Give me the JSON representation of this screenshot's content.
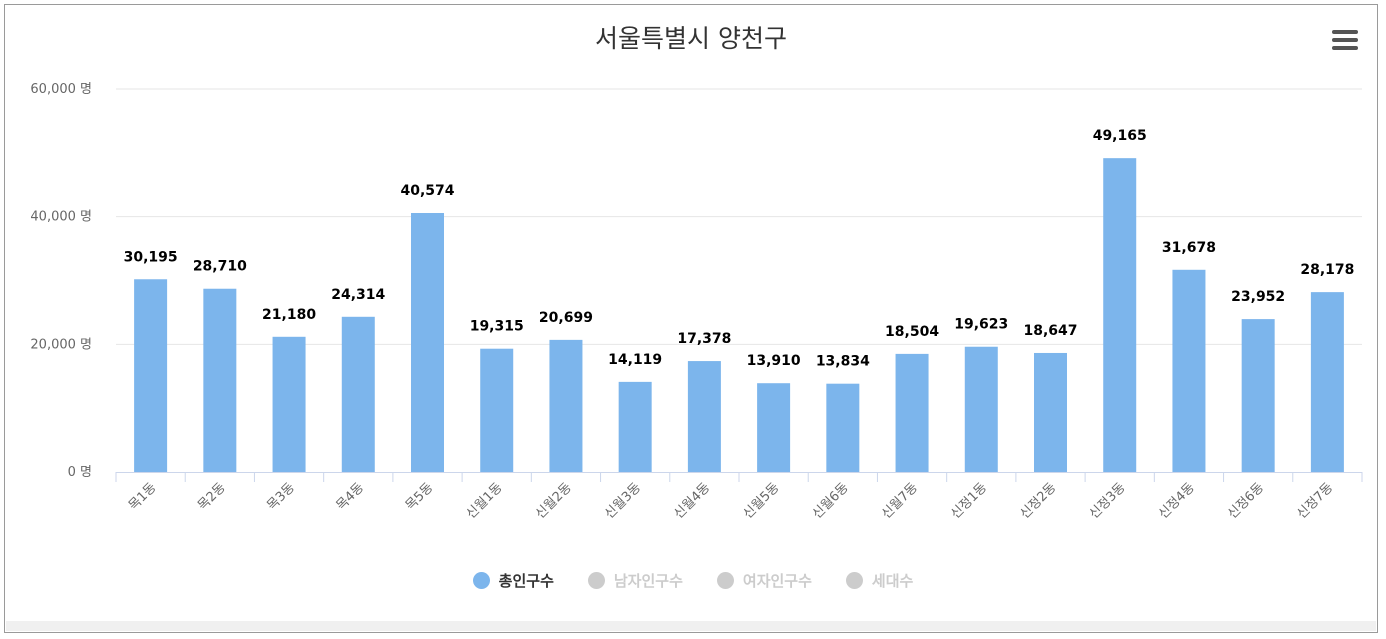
{
  "chart_data": {
    "type": "bar",
    "title": "서울특별시 양천구",
    "categories": [
      "목1동",
      "목2동",
      "목3동",
      "목4동",
      "목5동",
      "신월1동",
      "신월2동",
      "신월3동",
      "신월4동",
      "신월5동",
      "신월6동",
      "신월7동",
      "신정1동",
      "신정2동",
      "신정3동",
      "신정4동",
      "신정6동",
      "신정7동"
    ],
    "series": [
      {
        "name": "총인구수",
        "values": [
          30195,
          28710,
          21180,
          24314,
          40574,
          19315,
          20699,
          14119,
          17378,
          13910,
          13834,
          18504,
          19623,
          18647,
          49165,
          31678,
          23952,
          28178
        ],
        "visible": true
      }
    ],
    "data_labels": [
      "30,195",
      "28,710",
      "21,180",
      "24,314",
      "40,574",
      "19,315",
      "20,699",
      "14,119",
      "17,378",
      "13,910",
      "13,834",
      "18,504",
      "19,623",
      "18,647",
      "49,165",
      "31,678",
      "23,952",
      "28,178"
    ],
    "ylim": [
      0,
      60000
    ],
    "yticks": [
      0,
      20000,
      40000,
      60000
    ],
    "ytick_labels": [
      "0 명",
      "20,000 명",
      "40,000 명",
      "60,000 명"
    ],
    "xlabel": "",
    "ylabel": "",
    "grid": true,
    "legend": {
      "position": "bottom-center",
      "items": [
        {
          "label": "총인구수",
          "color": "#7cb5ec",
          "active": true
        },
        {
          "label": "남자인구수",
          "color": "#cccccc",
          "active": false
        },
        {
          "label": "여자인구수",
          "color": "#cccccc",
          "active": false
        },
        {
          "label": "세대수",
          "color": "#cccccc",
          "active": false
        }
      ]
    }
  },
  "colors": {
    "bar": "#7cb5ec",
    "grid": "#e6e6e6",
    "axis": "#ccd6eb",
    "legend_active_text": "#333333",
    "legend_inactive_text": "#cccccc"
  },
  "menu_icon": "hamburger-menu-icon"
}
